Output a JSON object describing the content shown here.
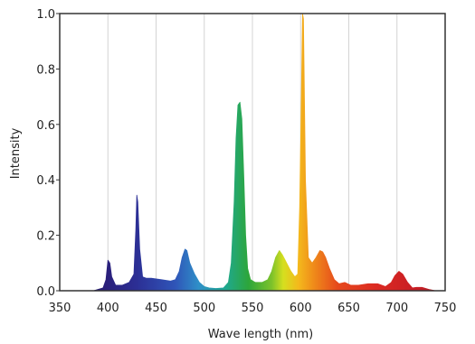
{
  "chart_data": {
    "type": "area",
    "title": "",
    "xlabel": "Wave length (nm)",
    "ylabel": "Intensity",
    "xlim": [
      350,
      750
    ],
    "ylim": [
      0,
      1.0
    ],
    "x_ticks": [
      350,
      400,
      450,
      500,
      550,
      600,
      650,
      700,
      750
    ],
    "x_tick_labels": [
      "350",
      "400",
      "450",
      "500",
      "550",
      "600",
      "650",
      "700",
      "750"
    ],
    "y_ticks": [
      0,
      0.2,
      0.4,
      0.6,
      0.8,
      1.0
    ],
    "y_tick_labels": [
      "0.0",
      "0.2",
      "0.4",
      "0.6",
      "0.8",
      "1.0"
    ],
    "grid": "vertical",
    "fill": "wavelength-colored spectrum",
    "series": [
      {
        "points": [
          [
            385,
            0.0
          ],
          [
            395,
            0.01
          ],
          [
            398,
            0.04
          ],
          [
            400,
            0.11
          ],
          [
            402,
            0.1
          ],
          [
            404,
            0.05
          ],
          [
            408,
            0.02
          ],
          [
            415,
            0.02
          ],
          [
            422,
            0.03
          ],
          [
            427,
            0.06
          ],
          [
            429,
            0.22
          ],
          [
            430,
            0.345
          ],
          [
            431,
            0.32
          ],
          [
            433,
            0.15
          ],
          [
            436,
            0.05
          ],
          [
            440,
            0.045
          ],
          [
            445,
            0.045
          ],
          [
            455,
            0.04
          ],
          [
            465,
            0.035
          ],
          [
            470,
            0.04
          ],
          [
            474,
            0.07
          ],
          [
            477,
            0.12
          ],
          [
            480,
            0.15
          ],
          [
            482,
            0.145
          ],
          [
            485,
            0.1
          ],
          [
            490,
            0.06
          ],
          [
            495,
            0.03
          ],
          [
            500,
            0.015
          ],
          [
            505,
            0.01
          ],
          [
            512,
            0.008
          ],
          [
            520,
            0.01
          ],
          [
            525,
            0.03
          ],
          [
            528,
            0.1
          ],
          [
            531,
            0.32
          ],
          [
            533,
            0.55
          ],
          [
            535,
            0.67
          ],
          [
            537,
            0.68
          ],
          [
            539,
            0.62
          ],
          [
            541,
            0.42
          ],
          [
            543,
            0.2
          ],
          [
            545,
            0.08
          ],
          [
            548,
            0.04
          ],
          [
            553,
            0.03
          ],
          [
            560,
            0.03
          ],
          [
            566,
            0.04
          ],
          [
            570,
            0.07
          ],
          [
            574,
            0.12
          ],
          [
            578,
            0.145
          ],
          [
            581,
            0.13
          ],
          [
            584,
            0.11
          ],
          [
            587,
            0.09
          ],
          [
            590,
            0.07
          ],
          [
            594,
            0.05
          ],
          [
            597,
            0.06
          ],
          [
            599,
            0.3
          ],
          [
            601,
            0.75
          ],
          [
            602,
            1.0
          ],
          [
            603,
            0.98
          ],
          [
            605,
            0.4
          ],
          [
            608,
            0.12
          ],
          [
            612,
            0.1
          ],
          [
            616,
            0.12
          ],
          [
            620,
            0.145
          ],
          [
            623,
            0.14
          ],
          [
            626,
            0.12
          ],
          [
            630,
            0.08
          ],
          [
            635,
            0.04
          ],
          [
            640,
            0.025
          ],
          [
            646,
            0.03
          ],
          [
            652,
            0.02
          ],
          [
            660,
            0.02
          ],
          [
            670,
            0.025
          ],
          [
            680,
            0.025
          ],
          [
            688,
            0.015
          ],
          [
            694,
            0.03
          ],
          [
            698,
            0.055
          ],
          [
            702,
            0.07
          ],
          [
            706,
            0.06
          ],
          [
            711,
            0.03
          ],
          [
            716,
            0.01
          ],
          [
            720,
            0.012
          ],
          [
            726,
            0.012
          ],
          [
            733,
            0.005
          ],
          [
            740,
            0.0
          ]
        ]
      }
    ]
  }
}
